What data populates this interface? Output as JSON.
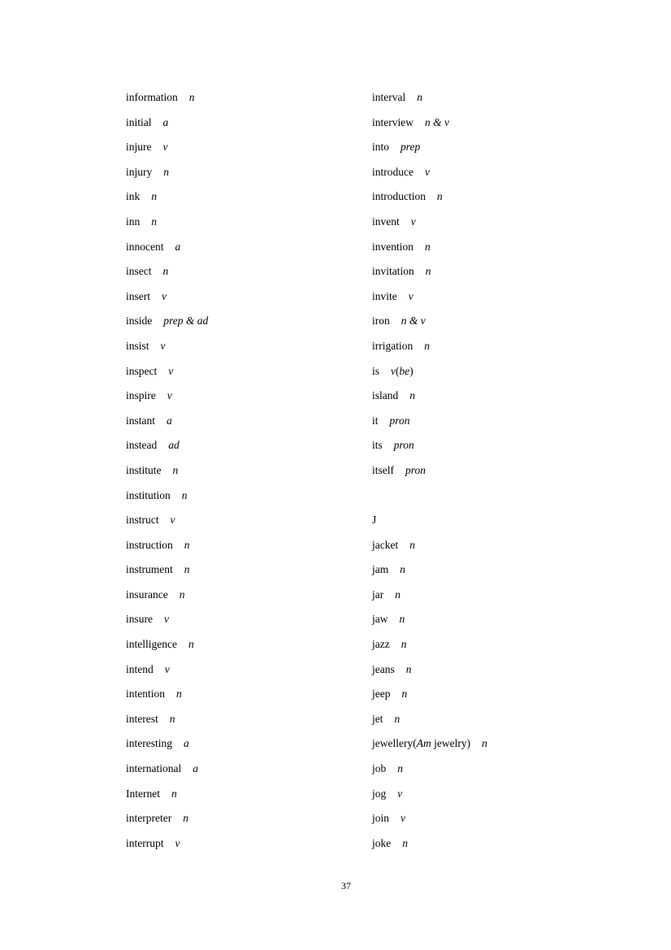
{
  "left_column": [
    {
      "word": [
        {
          "text": "information"
        }
      ],
      "pos": [
        {
          "text": "n",
          "italic": true
        }
      ]
    },
    {
      "word": [
        {
          "text": "initial"
        }
      ],
      "pos": [
        {
          "text": "a",
          "italic": true
        }
      ]
    },
    {
      "word": [
        {
          "text": "injure"
        }
      ],
      "pos": [
        {
          "text": "v",
          "italic": true
        }
      ]
    },
    {
      "word": [
        {
          "text": "injury"
        }
      ],
      "pos": [
        {
          "text": "n",
          "italic": true
        }
      ]
    },
    {
      "word": [
        {
          "text": "ink"
        }
      ],
      "pos": [
        {
          "text": "n",
          "italic": true
        }
      ]
    },
    {
      "word": [
        {
          "text": "inn"
        }
      ],
      "pos": [
        {
          "text": "n",
          "italic": true
        }
      ]
    },
    {
      "word": [
        {
          "text": "innocent"
        }
      ],
      "pos": [
        {
          "text": "a",
          "italic": true
        }
      ]
    },
    {
      "word": [
        {
          "text": "insect"
        }
      ],
      "pos": [
        {
          "text": "n",
          "italic": true
        }
      ]
    },
    {
      "word": [
        {
          "text": "insert"
        }
      ],
      "pos": [
        {
          "text": "v",
          "italic": true
        }
      ]
    },
    {
      "word": [
        {
          "text": "inside"
        }
      ],
      "pos": [
        {
          "text": "prep & ad",
          "italic": true
        }
      ]
    },
    {
      "word": [
        {
          "text": "insist"
        }
      ],
      "pos": [
        {
          "text": "v",
          "italic": true
        }
      ]
    },
    {
      "word": [
        {
          "text": "inspect"
        }
      ],
      "pos": [
        {
          "text": "v",
          "italic": true
        }
      ]
    },
    {
      "word": [
        {
          "text": "inspire"
        }
      ],
      "pos": [
        {
          "text": "v",
          "italic": true
        }
      ]
    },
    {
      "word": [
        {
          "text": "instant"
        }
      ],
      "pos": [
        {
          "text": "a",
          "italic": true
        }
      ]
    },
    {
      "word": [
        {
          "text": "instead"
        }
      ],
      "pos": [
        {
          "text": "ad",
          "italic": true
        }
      ]
    },
    {
      "word": [
        {
          "text": "institute"
        }
      ],
      "pos": [
        {
          "text": "n",
          "italic": true
        }
      ]
    },
    {
      "word": [
        {
          "text": "institution"
        }
      ],
      "pos": [
        {
          "text": "n",
          "italic": true
        }
      ]
    },
    {
      "word": [
        {
          "text": "instruct"
        }
      ],
      "pos": [
        {
          "text": "v",
          "italic": true
        }
      ]
    },
    {
      "word": [
        {
          "text": "instruction"
        }
      ],
      "pos": [
        {
          "text": "n",
          "italic": true
        }
      ]
    },
    {
      "word": [
        {
          "text": "instrument"
        }
      ],
      "pos": [
        {
          "text": "n",
          "italic": true
        }
      ]
    },
    {
      "word": [
        {
          "text": "insurance"
        }
      ],
      "pos": [
        {
          "text": "n",
          "italic": true
        }
      ]
    },
    {
      "word": [
        {
          "text": "insure"
        }
      ],
      "pos": [
        {
          "text": "v",
          "italic": true
        }
      ]
    },
    {
      "word": [
        {
          "text": "intelligence"
        }
      ],
      "pos": [
        {
          "text": "n",
          "italic": true
        }
      ]
    },
    {
      "word": [
        {
          "text": "intend"
        }
      ],
      "pos": [
        {
          "text": "v",
          "italic": true
        }
      ]
    },
    {
      "word": [
        {
          "text": "intention"
        }
      ],
      "pos": [
        {
          "text": "n",
          "italic": true
        }
      ]
    },
    {
      "word": [
        {
          "text": "interest"
        }
      ],
      "pos": [
        {
          "text": "n",
          "italic": true
        }
      ]
    },
    {
      "word": [
        {
          "text": "interesting"
        }
      ],
      "pos": [
        {
          "text": "a",
          "italic": true
        }
      ]
    },
    {
      "word": [
        {
          "text": "international"
        }
      ],
      "pos": [
        {
          "text": "a",
          "italic": true
        }
      ]
    },
    {
      "word": [
        {
          "text": "Internet"
        }
      ],
      "pos": [
        {
          "text": "n",
          "italic": true
        }
      ]
    },
    {
      "word": [
        {
          "text": "interpreter"
        }
      ],
      "pos": [
        {
          "text": "n",
          "italic": true
        }
      ]
    },
    {
      "word": [
        {
          "text": "interrupt"
        }
      ],
      "pos": [
        {
          "text": "v",
          "italic": true
        }
      ]
    }
  ],
  "right_column": [
    {
      "word": [
        {
          "text": "interval"
        }
      ],
      "pos": [
        {
          "text": "n",
          "italic": true
        }
      ]
    },
    {
      "word": [
        {
          "text": "interview"
        }
      ],
      "pos": [
        {
          "text": "n & v",
          "italic": true
        }
      ]
    },
    {
      "word": [
        {
          "text": "into"
        }
      ],
      "pos": [
        {
          "text": "prep",
          "italic": true
        }
      ]
    },
    {
      "word": [
        {
          "text": "introduce"
        }
      ],
      "pos": [
        {
          "text": "v",
          "italic": true
        }
      ]
    },
    {
      "word": [
        {
          "text": "introduction"
        }
      ],
      "pos": [
        {
          "text": "n",
          "italic": true
        }
      ]
    },
    {
      "word": [
        {
          "text": "invent"
        }
      ],
      "pos": [
        {
          "text": "v",
          "italic": true
        }
      ]
    },
    {
      "word": [
        {
          "text": "invention"
        }
      ],
      "pos": [
        {
          "text": "n",
          "italic": true
        }
      ]
    },
    {
      "word": [
        {
          "text": "invitation"
        }
      ],
      "pos": [
        {
          "text": "n",
          "italic": true
        }
      ]
    },
    {
      "word": [
        {
          "text": "invite"
        }
      ],
      "pos": [
        {
          "text": "v",
          "italic": true
        }
      ]
    },
    {
      "word": [
        {
          "text": "iron"
        }
      ],
      "pos": [
        {
          "text": "n & v",
          "italic": true
        }
      ]
    },
    {
      "word": [
        {
          "text": "irrigation"
        }
      ],
      "pos": [
        {
          "text": "n",
          "italic": true
        }
      ]
    },
    {
      "word": [
        {
          "text": "is"
        }
      ],
      "pos": [
        {
          "text": "v",
          "italic": true
        },
        {
          "text": "("
        },
        {
          "text": "be",
          "italic": true
        },
        {
          "text": ")"
        }
      ]
    },
    {
      "word": [
        {
          "text": "island"
        }
      ],
      "pos": [
        {
          "text": "n",
          "italic": true
        }
      ]
    },
    {
      "word": [
        {
          "text": "it"
        }
      ],
      "pos": [
        {
          "text": "pron",
          "italic": true
        }
      ]
    },
    {
      "word": [
        {
          "text": "its"
        }
      ],
      "pos": [
        {
          "text": "pron",
          "italic": true
        }
      ]
    },
    {
      "word": [
        {
          "text": "itself"
        }
      ],
      "pos": [
        {
          "text": "pron",
          "italic": true
        }
      ]
    },
    {
      "blank": true
    },
    {
      "heading": "J"
    },
    {
      "word": [
        {
          "text": "jacket"
        }
      ],
      "pos": [
        {
          "text": "n",
          "italic": true
        }
      ]
    },
    {
      "word": [
        {
          "text": "jam"
        }
      ],
      "pos": [
        {
          "text": "n",
          "italic": true
        }
      ]
    },
    {
      "word": [
        {
          "text": "jar"
        }
      ],
      "pos": [
        {
          "text": "n",
          "italic": true
        }
      ]
    },
    {
      "word": [
        {
          "text": "jaw"
        }
      ],
      "pos": [
        {
          "text": "n",
          "italic": true
        }
      ]
    },
    {
      "word": [
        {
          "text": "jazz"
        }
      ],
      "pos": [
        {
          "text": "n",
          "italic": true
        }
      ]
    },
    {
      "word": [
        {
          "text": "jeans"
        }
      ],
      "pos": [
        {
          "text": "n",
          "italic": true
        }
      ]
    },
    {
      "word": [
        {
          "text": "jeep"
        }
      ],
      "pos": [
        {
          "text": "n",
          "italic": true
        }
      ]
    },
    {
      "word": [
        {
          "text": "jet"
        }
      ],
      "pos": [
        {
          "text": "n",
          "italic": true
        }
      ]
    },
    {
      "word": [
        {
          "text": "jewellery("
        },
        {
          "text": "Am",
          "italic": true
        },
        {
          "text": " jewelry)"
        }
      ],
      "pos": [
        {
          "text": "n",
          "italic": true
        }
      ]
    },
    {
      "word": [
        {
          "text": "job"
        }
      ],
      "pos": [
        {
          "text": "n",
          "italic": true
        }
      ]
    },
    {
      "word": [
        {
          "text": "jog"
        }
      ],
      "pos": [
        {
          "text": "v",
          "italic": true
        }
      ]
    },
    {
      "word": [
        {
          "text": "join"
        }
      ],
      "pos": [
        {
          "text": "v",
          "italic": true
        }
      ]
    },
    {
      "word": [
        {
          "text": "joke"
        }
      ],
      "pos": [
        {
          "text": "n",
          "italic": true
        }
      ]
    }
  ],
  "page_number": "37"
}
